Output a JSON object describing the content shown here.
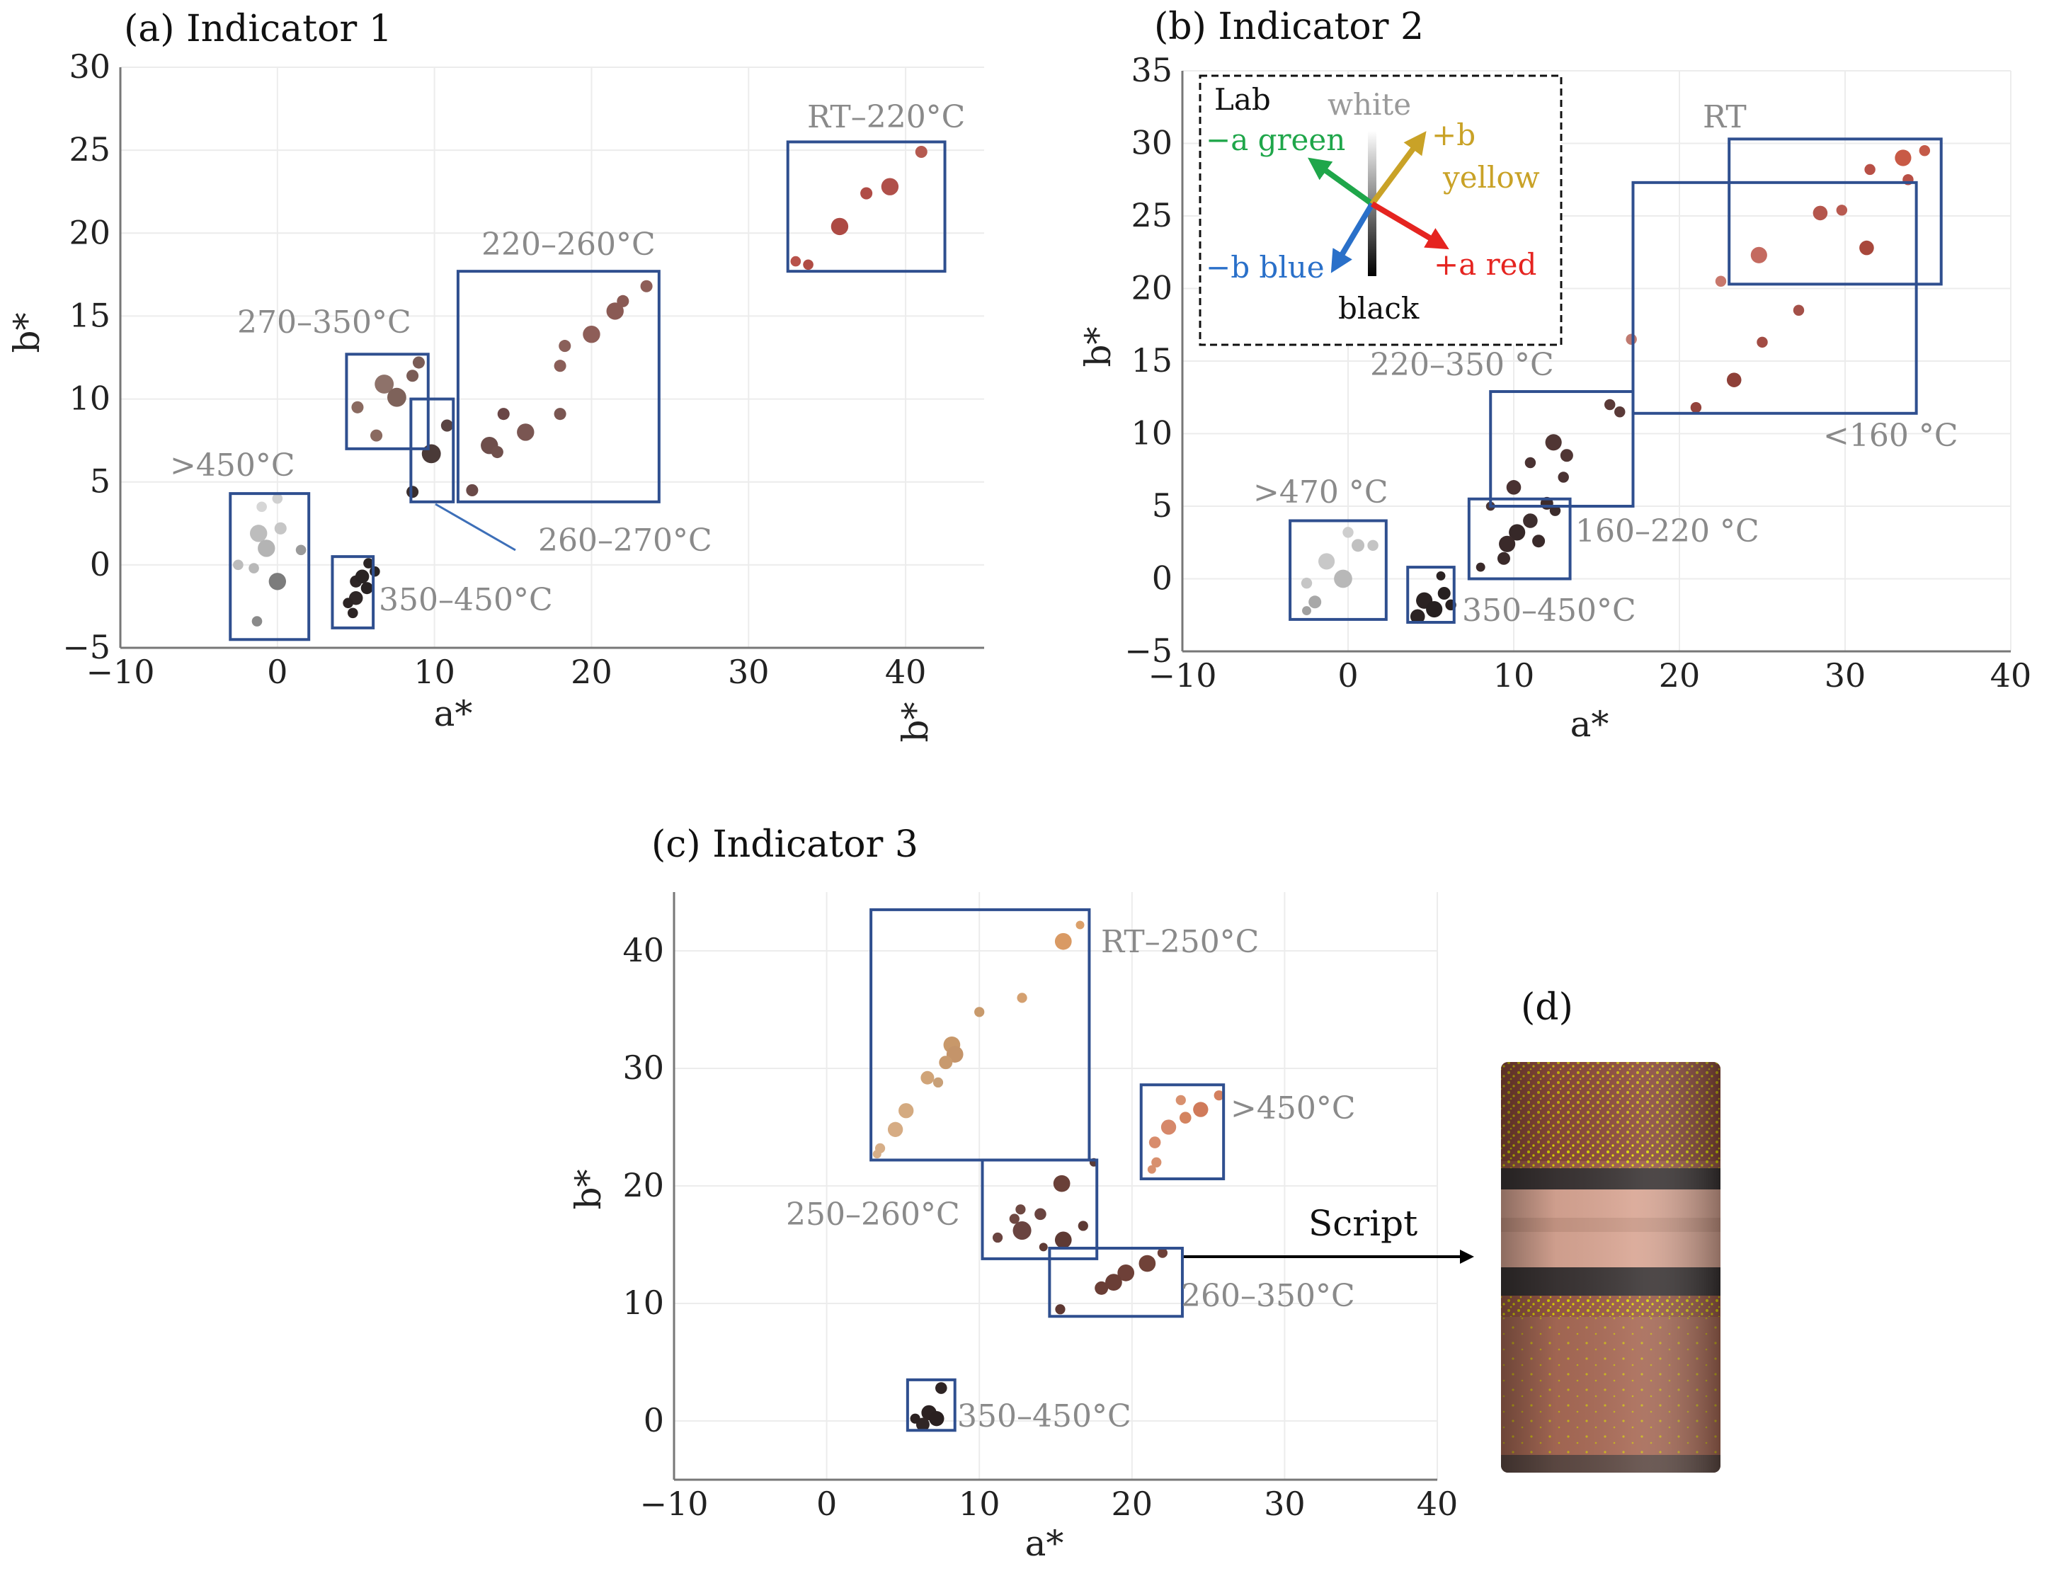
{
  "chart_data": [
    {
      "type": "scatter",
      "title": "(a) Indicator 1",
      "xlabel": "a*",
      "ylabel": "b*",
      "extra_label": "b*",
      "xlim": [
        -10,
        45
      ],
      "ylim": [
        -5,
        30
      ],
      "xticks": [
        "−10",
        "0",
        "10",
        "20",
        "30",
        "40"
      ],
      "xtick_values": [
        -10,
        0,
        10,
        20,
        30,
        40
      ],
      "yticks": [
        "−5",
        "0",
        "5",
        "10",
        "15",
        "20",
        "25",
        "30"
      ],
      "ytick_values": [
        -5,
        0,
        5,
        10,
        15,
        20,
        25,
        30
      ],
      "grid": true,
      "points": [
        {
          "x": 33,
          "y": 18.3,
          "r": 0.6,
          "color": "#b8524a"
        },
        {
          "x": 33.8,
          "y": 18.1,
          "r": 0.6,
          "color": "#b04c44"
        },
        {
          "x": 35.8,
          "y": 20.4,
          "r": 1.0,
          "color": "#ad4a44"
        },
        {
          "x": 37.5,
          "y": 22.4,
          "r": 0.7,
          "color": "#b04c46"
        },
        {
          "x": 39,
          "y": 22.8,
          "r": 1.0,
          "color": "#b0504a"
        },
        {
          "x": 41,
          "y": 24.9,
          "r": 0.7,
          "color": "#b55a50"
        },
        {
          "x": 12.4,
          "y": 4.5,
          "r": 0.7,
          "color": "#6a4a48"
        },
        {
          "x": 13.5,
          "y": 7.2,
          "r": 1.0,
          "color": "#6e4e4b"
        },
        {
          "x": 14,
          "y": 6.8,
          "r": 0.7,
          "color": "#70504c"
        },
        {
          "x": 14.4,
          "y": 9.1,
          "r": 0.7,
          "color": "#6a4646"
        },
        {
          "x": 15.8,
          "y": 8.0,
          "r": 1.0,
          "color": "#7a5652"
        },
        {
          "x": 18,
          "y": 9.1,
          "r": 0.7,
          "color": "#7a5652"
        },
        {
          "x": 18,
          "y": 12.0,
          "r": 0.7,
          "color": "#8a5e58"
        },
        {
          "x": 18.3,
          "y": 13.2,
          "r": 0.7,
          "color": "#8a605a"
        },
        {
          "x": 20,
          "y": 13.9,
          "r": 1.0,
          "color": "#8e5e58"
        },
        {
          "x": 21.5,
          "y": 15.3,
          "r": 1.0,
          "color": "#8a5a54"
        },
        {
          "x": 22,
          "y": 15.9,
          "r": 0.7,
          "color": "#8a5a54"
        },
        {
          "x": 23.5,
          "y": 16.8,
          "r": 0.7,
          "color": "#8e5e58"
        },
        {
          "x": 8.6,
          "y": 4.4,
          "r": 0.7,
          "color": "#3a2e2e"
        },
        {
          "x": 9.8,
          "y": 6.7,
          "r": 1.1,
          "color": "#4a3a38"
        },
        {
          "x": 10.8,
          "y": 8.4,
          "r": 0.7,
          "color": "#5a4442"
        },
        {
          "x": 5.1,
          "y": 9.5,
          "r": 0.7,
          "color": "#8a6a60"
        },
        {
          "x": 6.3,
          "y": 7.8,
          "r": 0.7,
          "color": "#8a6a60"
        },
        {
          "x": 6.8,
          "y": 10.9,
          "r": 1.1,
          "color": "#8e726a"
        },
        {
          "x": 7.6,
          "y": 10.1,
          "r": 1.1,
          "color": "#7e625a"
        },
        {
          "x": 8.6,
          "y": 11.4,
          "r": 0.7,
          "color": "#7a5c56"
        },
        {
          "x": 9.0,
          "y": 12.2,
          "r": 0.7,
          "color": "#7a5c56"
        },
        {
          "x": -1.0,
          "y": 3.5,
          "r": 0.6,
          "color": "#d6d6d6"
        },
        {
          "x": 0.0,
          "y": 4.0,
          "r": 0.6,
          "color": "#d0d0d0"
        },
        {
          "x": -1.2,
          "y": 1.9,
          "r": 1.0,
          "color": "#bdbdbd"
        },
        {
          "x": -0.7,
          "y": 1.0,
          "r": 1.0,
          "color": "#b4b4b4"
        },
        {
          "x": 0.2,
          "y": 2.2,
          "r": 0.7,
          "color": "#c6c6c6"
        },
        {
          "x": -2.5,
          "y": 0.0,
          "r": 0.6,
          "color": "#bcbcbc"
        },
        {
          "x": -1.5,
          "y": -0.2,
          "r": 0.6,
          "color": "#b8b8b8"
        },
        {
          "x": 0.0,
          "y": -1.0,
          "r": 1.0,
          "color": "#7c7c7c"
        },
        {
          "x": 1.5,
          "y": 0.9,
          "r": 0.6,
          "color": "#9a9a9a"
        },
        {
          "x": -1.3,
          "y": -3.4,
          "r": 0.6,
          "color": "#8a8a8a"
        },
        {
          "x": 5.0,
          "y": -1.0,
          "r": 0.7,
          "color": "#2e2626"
        },
        {
          "x": 5.4,
          "y": -0.7,
          "r": 0.8,
          "color": "#2a2424"
        },
        {
          "x": 5.0,
          "y": -2.0,
          "r": 0.8,
          "color": "#302828"
        },
        {
          "x": 4.8,
          "y": -2.9,
          "r": 0.6,
          "color": "#2c2424"
        },
        {
          "x": 4.5,
          "y": -2.3,
          "r": 0.6,
          "color": "#2c2424"
        },
        {
          "x": 5.7,
          "y": -1.4,
          "r": 0.7,
          "color": "#282222"
        },
        {
          "x": 6.2,
          "y": -0.4,
          "r": 0.6,
          "color": "#2a2424"
        },
        {
          "x": 5.8,
          "y": 0.1,
          "r": 0.6,
          "color": "#2a2424"
        }
      ],
      "boxes": [
        {
          "x0": 32.5,
          "x1": 42.5,
          "y0": 17.7,
          "y1": 25.5,
          "label": "RT–220°C"
        },
        {
          "x0": 11.5,
          "x1": 24.3,
          "y0": 3.8,
          "y1": 17.7,
          "label": "220–260°C"
        },
        {
          "x0": 4.4,
          "x1": 9.6,
          "y0": 7.0,
          "y1": 12.7,
          "label": "270–350°C"
        },
        {
          "x0": 8.5,
          "x1": 11.2,
          "y0": 3.8,
          "y1": 10.0,
          "label": "260–270°C"
        },
        {
          "x0": -3.0,
          "x1": 2.0,
          "y0": -4.5,
          "y1": 4.3,
          "label": ">450°C"
        },
        {
          "x0": 3.5,
          "x1": 6.1,
          "y0": -3.8,
          "y1": 0.5,
          "label": "350–450°C"
        }
      ]
    },
    {
      "type": "scatter",
      "title": "(b) Indicator 2",
      "xlabel": "a*",
      "ylabel": "b*",
      "xlim": [
        -10,
        40
      ],
      "ylim": [
        -5,
        35
      ],
      "xticks": [
        "−10",
        "0",
        "10",
        "20",
        "30",
        "40"
      ],
      "xtick_values": [
        -10,
        0,
        10,
        20,
        30,
        40
      ],
      "yticks": [
        "−5",
        "0",
        "5",
        "10",
        "15",
        "20",
        "25",
        "30",
        "35"
      ],
      "ytick_values": [
        -5,
        0,
        5,
        10,
        15,
        20,
        25,
        30,
        35
      ],
      "grid": true,
      "points": [
        {
          "x": 33.5,
          "y": 29.0,
          "r": 0.9,
          "color": "#c85a46"
        },
        {
          "x": 34.8,
          "y": 29.5,
          "r": 0.6,
          "color": "#c45a48"
        },
        {
          "x": 33.8,
          "y": 27.5,
          "r": 0.6,
          "color": "#b85046"
        },
        {
          "x": 31.5,
          "y": 28.2,
          "r": 0.6,
          "color": "#b85046"
        },
        {
          "x": 28.5,
          "y": 25.2,
          "r": 0.8,
          "color": "#b4564c"
        },
        {
          "x": 29.8,
          "y": 25.4,
          "r": 0.6,
          "color": "#b85a50"
        },
        {
          "x": 31.3,
          "y": 22.8,
          "r": 0.8,
          "color": "#a8483c"
        },
        {
          "x": 24.8,
          "y": 22.3,
          "r": 0.9,
          "color": "#c46a60"
        },
        {
          "x": 22.5,
          "y": 20.5,
          "r": 0.6,
          "color": "#c8786c"
        },
        {
          "x": 27.2,
          "y": 18.5,
          "r": 0.6,
          "color": "#a45048"
        },
        {
          "x": 25.0,
          "y": 16.3,
          "r": 0.6,
          "color": "#a24c44"
        },
        {
          "x": 23.3,
          "y": 13.7,
          "r": 0.8,
          "color": "#8e4038"
        },
        {
          "x": 21.0,
          "y": 11.8,
          "r": 0.6,
          "color": "#94443c"
        },
        {
          "x": 17.1,
          "y": 16.5,
          "r": 0.6,
          "color": "#c07a70"
        },
        {
          "x": 15.8,
          "y": 12.0,
          "r": 0.6,
          "color": "#5a3a38"
        },
        {
          "x": 16.4,
          "y": 11.5,
          "r": 0.6,
          "color": "#5a3a38"
        },
        {
          "x": 12.4,
          "y": 9.4,
          "r": 0.9,
          "color": "#503634"
        },
        {
          "x": 13.2,
          "y": 8.5,
          "r": 0.7,
          "color": "#503634"
        },
        {
          "x": 11.0,
          "y": 8.0,
          "r": 0.6,
          "color": "#4a3232"
        },
        {
          "x": 10.0,
          "y": 6.3,
          "r": 0.8,
          "color": "#4a3232"
        },
        {
          "x": 13.0,
          "y": 7.0,
          "r": 0.6,
          "color": "#4a3232"
        },
        {
          "x": 12.0,
          "y": 5.2,
          "r": 0.7,
          "color": "#3e2c2c"
        },
        {
          "x": 8.6,
          "y": 5.0,
          "r": 0.5,
          "color": "#4a3636"
        },
        {
          "x": 11.0,
          "y": 4.0,
          "r": 0.8,
          "color": "#3e2e2e"
        },
        {
          "x": 10.2,
          "y": 3.2,
          "r": 0.9,
          "color": "#362828"
        },
        {
          "x": 9.6,
          "y": 2.4,
          "r": 0.9,
          "color": "#3a2a2a"
        },
        {
          "x": 11.5,
          "y": 2.6,
          "r": 0.7,
          "color": "#3a2a2a"
        },
        {
          "x": 9.4,
          "y": 1.4,
          "r": 0.7,
          "color": "#3a2a2a"
        },
        {
          "x": 8.0,
          "y": 0.8,
          "r": 0.5,
          "color": "#3a2a2a"
        },
        {
          "x": 12.5,
          "y": 4.7,
          "r": 0.6,
          "color": "#3c2c2c"
        },
        {
          "x": 4.6,
          "y": -1.5,
          "r": 0.9,
          "color": "#2a2222"
        },
        {
          "x": 5.2,
          "y": -2.1,
          "r": 0.9,
          "color": "#262020"
        },
        {
          "x": 4.2,
          "y": -2.6,
          "r": 0.8,
          "color": "#2c2424"
        },
        {
          "x": 5.8,
          "y": -1.0,
          "r": 0.7,
          "color": "#262020"
        },
        {
          "x": 6.2,
          "y": -1.8,
          "r": 0.6,
          "color": "#282020"
        },
        {
          "x": 5.6,
          "y": 0.2,
          "r": 0.5,
          "color": "#2a2222"
        },
        {
          "x": -1.3,
          "y": 1.2,
          "r": 0.9,
          "color": "#c8c8c8"
        },
        {
          "x": -0.3,
          "y": 0.0,
          "r": 1.0,
          "color": "#b8b8b8"
        },
        {
          "x": 0.0,
          "y": 3.2,
          "r": 0.6,
          "color": "#cecece"
        },
        {
          "x": 0.6,
          "y": 2.3,
          "r": 0.7,
          "color": "#c0c0c0"
        },
        {
          "x": 1.5,
          "y": 2.3,
          "r": 0.6,
          "color": "#c4c4c4"
        },
        {
          "x": -2.5,
          "y": -0.3,
          "r": 0.6,
          "color": "#c6c6c6"
        },
        {
          "x": -2.0,
          "y": -1.6,
          "r": 0.7,
          "color": "#a8a8a8"
        },
        {
          "x": -2.5,
          "y": -2.2,
          "r": 0.5,
          "color": "#a0a0a0"
        }
      ],
      "boxes": [
        {
          "x0": 23.0,
          "x1": 35.8,
          "y0": 20.3,
          "y1": 30.3,
          "label": "RT"
        },
        {
          "x0": 17.2,
          "x1": 34.3,
          "y0": 11.4,
          "y1": 27.3,
          "label": "<160 °C"
        },
        {
          "x0": 8.6,
          "x1": 17.2,
          "y0": 5.0,
          "y1": 12.9,
          "label": "220–350 °C"
        },
        {
          "x0": 7.3,
          "x1": 13.4,
          "y0": 0.0,
          "y1": 5.5,
          "label": "160–220 °C"
        },
        {
          "x0": -3.5,
          "x1": 2.3,
          "y0": -2.8,
          "y1": 4.0,
          "label": ">470 °C"
        },
        {
          "x0": 3.6,
          "x1": 6.4,
          "y0": -3.0,
          "y1": 0.8,
          "label": "350–450°C"
        }
      ],
      "inset": {
        "title": "Lab",
        "labels": {
          "white": "white",
          "black": "black",
          "green": "−a green",
          "yellow_sign": "+b",
          "yellow": "yellow",
          "blue": "−b blue",
          "red": "+a red"
        },
        "colors": {
          "green": "#1fa64a",
          "yellow": "#c9a227",
          "blue": "#2a70c9",
          "red": "#e52420"
        }
      }
    },
    {
      "type": "scatter",
      "title": "(c) Indicator 3",
      "xlabel": "a*",
      "ylabel": "b*",
      "xlim": [
        -10,
        40
      ],
      "ylim": [
        -5,
        45
      ],
      "xticks": [
        "−10",
        "0",
        "10",
        "20",
        "30",
        "40"
      ],
      "xtick_values": [
        -10,
        0,
        10,
        20,
        30,
        40
      ],
      "yticks": [
        "0",
        "10",
        "20",
        "30",
        "40"
      ],
      "ytick_values": [
        0,
        10,
        20,
        30,
        40
      ],
      "grid": true,
      "points": [
        {
          "x": 16.6,
          "y": 42.2,
          "r": 0.5,
          "color": "#dba06a"
        },
        {
          "x": 15.5,
          "y": 40.8,
          "r": 1.0,
          "color": "#d99a64"
        },
        {
          "x": 12.8,
          "y": 36.0,
          "r": 0.6,
          "color": "#d4a070"
        },
        {
          "x": 10.0,
          "y": 34.8,
          "r": 0.6,
          "color": "#c89a6c"
        },
        {
          "x": 8.2,
          "y": 32.0,
          "r": 1.0,
          "color": "#c8986a"
        },
        {
          "x": 8.4,
          "y": 31.2,
          "r": 1.0,
          "color": "#c4946a"
        },
        {
          "x": 7.8,
          "y": 30.5,
          "r": 0.8,
          "color": "#c89a6e"
        },
        {
          "x": 6.6,
          "y": 29.2,
          "r": 0.8,
          "color": "#d0a478"
        },
        {
          "x": 7.3,
          "y": 28.8,
          "r": 0.6,
          "color": "#c8a078"
        },
        {
          "x": 5.2,
          "y": 26.4,
          "r": 0.9,
          "color": "#d4aa80"
        },
        {
          "x": 4.5,
          "y": 24.8,
          "r": 0.9,
          "color": "#d6ac84"
        },
        {
          "x": 3.5,
          "y": 23.2,
          "r": 0.6,
          "color": "#d6ae88"
        },
        {
          "x": 3.3,
          "y": 22.7,
          "r": 0.5,
          "color": "#d6ae88"
        },
        {
          "x": 17.5,
          "y": 22.0,
          "r": 0.5,
          "color": "#5a3c38"
        },
        {
          "x": 15.4,
          "y": 20.2,
          "r": 1.0,
          "color": "#6a4038"
        },
        {
          "x": 15.5,
          "y": 15.4,
          "r": 1.0,
          "color": "#5e3a34"
        },
        {
          "x": 12.8,
          "y": 16.2,
          "r": 1.1,
          "color": "#6a4440"
        },
        {
          "x": 12.7,
          "y": 18.0,
          "r": 0.6,
          "color": "#6e4842"
        },
        {
          "x": 14.0,
          "y": 17.6,
          "r": 0.7,
          "color": "#6a4440"
        },
        {
          "x": 12.3,
          "y": 17.2,
          "r": 0.6,
          "color": "#6e4842"
        },
        {
          "x": 11.2,
          "y": 15.6,
          "r": 0.6,
          "color": "#6a4440"
        },
        {
          "x": 16.8,
          "y": 16.6,
          "r": 0.6,
          "color": "#5e3a34"
        },
        {
          "x": 14.2,
          "y": 14.8,
          "r": 0.5,
          "color": "#5e3a34"
        },
        {
          "x": 22.0,
          "y": 14.3,
          "r": 0.6,
          "color": "#6e4038"
        },
        {
          "x": 21.0,
          "y": 13.4,
          "r": 1.0,
          "color": "#704238"
        },
        {
          "x": 19.6,
          "y": 12.6,
          "r": 1.0,
          "color": "#6e4038"
        },
        {
          "x": 18.8,
          "y": 11.8,
          "r": 1.0,
          "color": "#6a3e36"
        },
        {
          "x": 18.0,
          "y": 11.3,
          "r": 0.8,
          "color": "#6a3e36"
        },
        {
          "x": 15.3,
          "y": 9.5,
          "r": 0.6,
          "color": "#5e3832"
        },
        {
          "x": 25.7,
          "y": 27.7,
          "r": 0.6,
          "color": "#d4805e"
        },
        {
          "x": 24.5,
          "y": 26.5,
          "r": 0.9,
          "color": "#d07a5a"
        },
        {
          "x": 23.5,
          "y": 25.8,
          "r": 0.7,
          "color": "#d48460"
        },
        {
          "x": 22.4,
          "y": 25.0,
          "r": 0.9,
          "color": "#d6886a"
        },
        {
          "x": 23.2,
          "y": 27.3,
          "r": 0.6,
          "color": "#d8906e"
        },
        {
          "x": 21.5,
          "y": 23.7,
          "r": 0.7,
          "color": "#d88c6c"
        },
        {
          "x": 21.6,
          "y": 22.0,
          "r": 0.6,
          "color": "#d8906e"
        },
        {
          "x": 21.3,
          "y": 21.4,
          "r": 0.5,
          "color": "#d8906e"
        },
        {
          "x": 7.5,
          "y": 2.8,
          "r": 0.7,
          "color": "#2e2424"
        },
        {
          "x": 6.7,
          "y": 0.7,
          "r": 0.9,
          "color": "#2c2222"
        },
        {
          "x": 7.2,
          "y": 0.2,
          "r": 0.9,
          "color": "#2a2020"
        },
        {
          "x": 6.3,
          "y": -0.3,
          "r": 0.8,
          "color": "#302626"
        },
        {
          "x": 5.8,
          "y": 0.2,
          "r": 0.6,
          "color": "#2c2222"
        }
      ],
      "boxes": [
        {
          "x0": 2.9,
          "x1": 17.2,
          "y0": 22.2,
          "y1": 43.5,
          "label": "RT–250°C"
        },
        {
          "x0": 20.6,
          "x1": 26.0,
          "y0": 20.6,
          "y1": 28.6,
          "label": ">450°C"
        },
        {
          "x0": 10.2,
          "x1": 17.7,
          "y0": 13.8,
          "y1": 22.2,
          "label": "250–260°C"
        },
        {
          "x0": 14.6,
          "x1": 23.3,
          "y0": 8.9,
          "y1": 14.7,
          "label": "260–350°C"
        },
        {
          "x0": 5.3,
          "x1": 8.4,
          "y0": -0.8,
          "y1": 3.5,
          "label": "350–450°C"
        }
      ]
    }
  ],
  "panel_d": {
    "title": "(d)",
    "arrow_label": "Script",
    "colors": {
      "body": "#9a5a48",
      "band": "#3a3434",
      "stripe": "#c8c800",
      "light": "#d9a694"
    }
  }
}
